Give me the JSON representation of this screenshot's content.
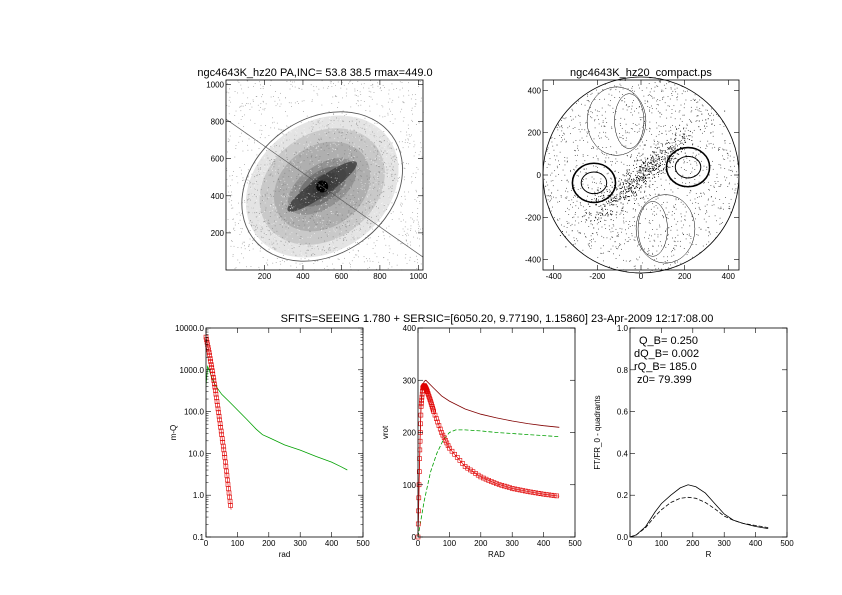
{
  "header": {
    "image_title": "ngc4643K_hz20 PA,INC= 53.8 38.5 rmax=449.0",
    "field_title": "ngc4643K_hz20_compact.ps",
    "subtitle": "SFITS=SEEING 1.780 + SERSIC=[6050.20, 9.77190, 1.15860]  23-Apr-2009 12:17:08.00"
  },
  "annotations": {
    "q_b": "Q_B=  0.250",
    "dq_b": "dQ_B=  0.002",
    "rq_b": "rQ_B=  185.0",
    "z0": "z0= 79.399"
  },
  "colors": {
    "axes": "#000000",
    "model": "#e00000",
    "disk": "#00a000",
    "total": "#800000",
    "ellipse": "#555555"
  },
  "chart_data": [
    {
      "id": "image",
      "type": "heatmap",
      "title": "ngc4643K_hz20 PA,INC= 53.8 38.5 rmax=449.0",
      "xlim": [
        0,
        1024
      ],
      "ylim": [
        0,
        1024
      ],
      "xticks": [
        200,
        400,
        600,
        800,
        1000
      ],
      "yticks": [
        200,
        400,
        600,
        800,
        1000
      ],
      "center": [
        500,
        450
      ],
      "ellipse": {
        "semi_major": 449.0,
        "semi_minor": 351.4,
        "pa_deg": 53.8
      }
    },
    {
      "id": "field",
      "type": "scatter",
      "title": "ngc4643K_hz20_compact.ps",
      "xlim": [
        -449,
        449
      ],
      "ylim": [
        -449,
        449
      ],
      "xticks": [
        -400,
        -200,
        0,
        200,
        400
      ],
      "yticks": [
        -400,
        -200,
        0,
        200,
        400
      ],
      "rmax": 449.0
    },
    {
      "id": "profile",
      "type": "line",
      "xlabel": "rad",
      "ylabel": "m-Q",
      "ylog": true,
      "xlim": [
        0,
        500
      ],
      "ylim": [
        0.1,
        10000
      ],
      "xticks": [
        0,
        100,
        200,
        300,
        400,
        500
      ],
      "yticks": [
        {
          "v": 0.1,
          "label": "0.1"
        },
        {
          "v": 1,
          "label": "1.0"
        },
        {
          "v": 10,
          "label": "10.0"
        },
        {
          "v": 100,
          "label": "100.0"
        },
        {
          "v": 1000,
          "label": "1000.0"
        },
        {
          "v": 10000,
          "label": "10000.0"
        }
      ],
      "series": [
        {
          "color": "green",
          "x": [
            0,
            5,
            10,
            20,
            30,
            50,
            75,
            100,
            130,
            160,
            180,
            200,
            250,
            300,
            350,
            400,
            430,
            450
          ],
          "y": [
            420,
            1200,
            1000,
            600,
            420,
            260,
            170,
            110,
            65,
            38,
            28,
            24,
            16,
            12,
            8.5,
            6.2,
            4.8,
            4.0
          ]
        },
        {
          "color": "red",
          "marker": "square",
          "x": [
            0,
            10,
            20,
            30,
            40,
            50,
            60,
            70,
            80
          ],
          "y": [
            6050,
            2600,
            950,
            320,
            95,
            28,
            8,
            1.8,
            0.45
          ]
        }
      ]
    },
    {
      "id": "rotation",
      "type": "line",
      "xlabel": "RAD",
      "ylabel": "vrot",
      "xlim": [
        0,
        500
      ],
      "ylim": [
        0,
        400
      ],
      "xticks": [
        0,
        100,
        200,
        300,
        400,
        500
      ],
      "yticks": [
        0,
        100,
        200,
        300,
        400
      ],
      "series": [
        {
          "color": "maroon",
          "x": [
            0,
            5,
            10,
            15,
            20,
            25,
            30,
            50,
            75,
            100,
            150,
            200,
            250,
            300,
            350,
            400,
            450
          ],
          "y": [
            0,
            150,
            260,
            290,
            298,
            300,
            297,
            285,
            270,
            260,
            245,
            235,
            228,
            222,
            217,
            213,
            210
          ]
        },
        {
          "color": "green",
          "dash": true,
          "x": [
            0,
            20,
            40,
            60,
            80,
            100,
            120,
            150,
            200,
            250,
            300,
            350,
            400,
            450
          ],
          "y": [
            0,
            70,
            125,
            160,
            185,
            200,
            205,
            205,
            203,
            200,
            198,
            196,
            194,
            192
          ]
        },
        {
          "color": "red",
          "marker": "square",
          "x": [
            0,
            5,
            10,
            15,
            20,
            25,
            30,
            40,
            50,
            75,
            100,
            150,
            200,
            250,
            300,
            350,
            400,
            450
          ],
          "y": [
            0,
            150,
            250,
            285,
            290,
            285,
            278,
            260,
            240,
            200,
            170,
            135,
            115,
            102,
            93,
            87,
            82,
            78
          ]
        }
      ]
    },
    {
      "id": "torque",
      "type": "line",
      "xlabel": "R",
      "ylabel": "FT/FR_0 - quadrants",
      "xlim": [
        0,
        500
      ],
      "ylim": [
        0,
        1.0
      ],
      "xticks": [
        0,
        100,
        200,
        300,
        400,
        500
      ],
      "yticks": [
        {
          "v": 0.0,
          "label": "0.0"
        },
        {
          "v": 0.2,
          "label": "0.2"
        },
        {
          "v": 0.4,
          "label": "0.4"
        },
        {
          "v": 0.6,
          "label": "0.6"
        },
        {
          "v": 0.8,
          "label": "0.8"
        },
        {
          "v": 1.0,
          "label": "1.0"
        }
      ],
      "series": [
        {
          "color": "black",
          "x": [
            0,
            20,
            50,
            80,
            100,
            130,
            160,
            185,
            210,
            240,
            270,
            300,
            330,
            360,
            400,
            440
          ],
          "y": [
            0,
            0.01,
            0.05,
            0.12,
            0.16,
            0.2,
            0.235,
            0.25,
            0.24,
            0.21,
            0.16,
            0.11,
            0.08,
            0.065,
            0.05,
            0.04
          ]
        },
        {
          "color": "black",
          "dash": true,
          "x": [
            0,
            20,
            50,
            80,
            100,
            130,
            160,
            185,
            210,
            240,
            270,
            300,
            330,
            360,
            400,
            440
          ],
          "y": [
            0,
            0.01,
            0.045,
            0.1,
            0.13,
            0.165,
            0.185,
            0.19,
            0.185,
            0.165,
            0.135,
            0.1,
            0.08,
            0.065,
            0.055,
            0.045
          ]
        }
      ]
    }
  ]
}
